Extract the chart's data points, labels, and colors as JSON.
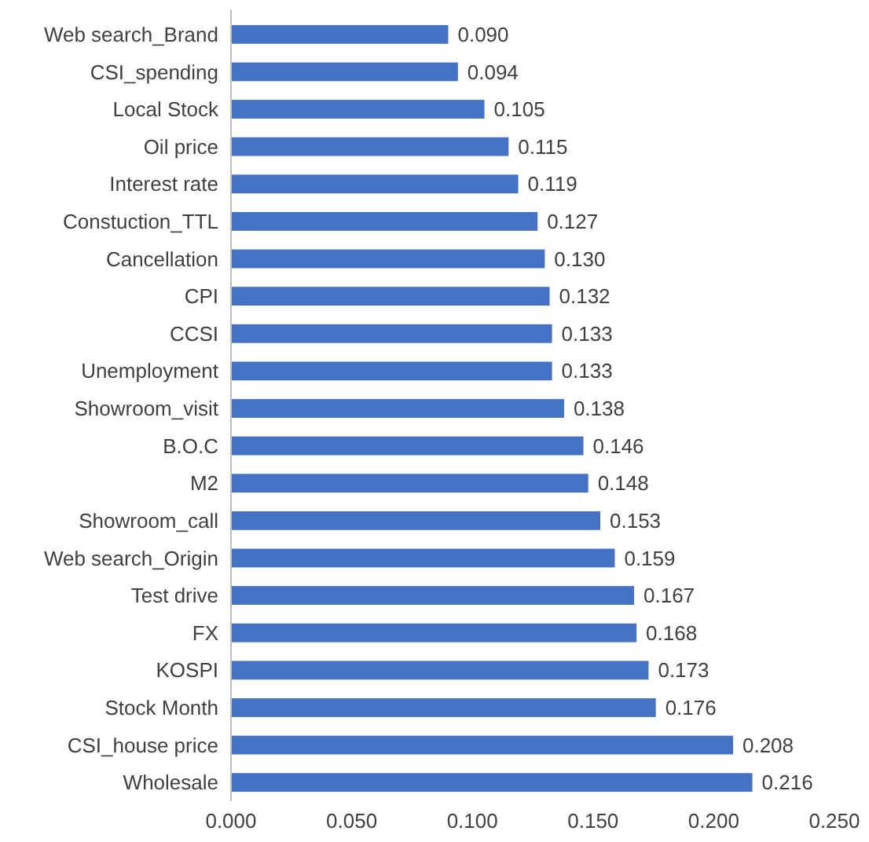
{
  "chart_data": {
    "type": "bar",
    "orientation": "horizontal",
    "categories": [
      "Web search_Brand",
      "CSI_spending",
      "Local Stock",
      "Oil price",
      "Interest rate",
      "Constuction_TTL",
      "Cancellation",
      "CPI",
      "CCSI",
      "Unemployment",
      "Showroom_visit",
      "B.O.C",
      "M2",
      "Showroom_call",
      "Web search_Origin",
      "Test drive",
      "FX",
      "KOSPI",
      "Stock Month",
      "CSI_house price",
      "Wholesale"
    ],
    "values": [
      0.09,
      0.094,
      0.105,
      0.115,
      0.119,
      0.127,
      0.13,
      0.132,
      0.133,
      0.133,
      0.138,
      0.146,
      0.148,
      0.153,
      0.159,
      0.167,
      0.168,
      0.173,
      0.176,
      0.208,
      0.216
    ],
    "value_labels": [
      "0.090",
      "0.094",
      "0.105",
      "0.115",
      "0.119",
      "0.127",
      "0.130",
      "0.132",
      "0.133",
      "0.133",
      "0.138",
      "0.146",
      "0.148",
      "0.153",
      "0.159",
      "0.167",
      "0.168",
      "0.173",
      "0.176",
      "0.208",
      "0.216"
    ],
    "color": "#4472c4",
    "xlim": [
      0,
      0.25
    ],
    "xticks": [
      {
        "value": 0,
        "label": "0.000"
      },
      {
        "value": 0.05,
        "label": "0.050"
      },
      {
        "value": 0.1,
        "label": "0.100"
      },
      {
        "value": 0.15,
        "label": "0.150"
      },
      {
        "value": 0.2,
        "label": "0.200"
      },
      {
        "value": 0.25,
        "label": "0.250"
      }
    ],
    "grid": false
  }
}
